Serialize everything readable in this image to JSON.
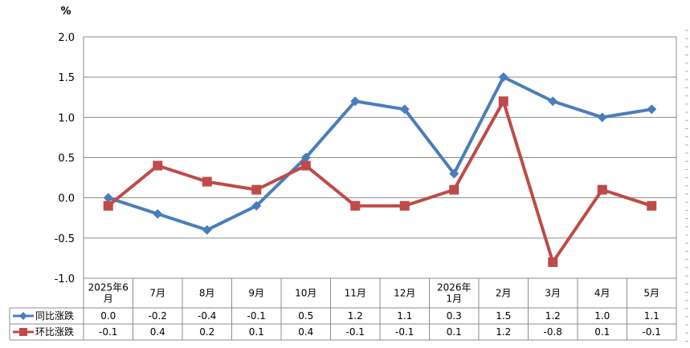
{
  "chart_data": {
    "type": "line",
    "unit": "%",
    "ylim": [
      -1.0,
      2.0
    ],
    "yticks": [
      "2.0",
      "1.5",
      "1.0",
      "0.5",
      "0.0",
      "-0.5",
      "-1.0"
    ],
    "grid": true,
    "categories": [
      [
        "2025年6",
        "月"
      ],
      [
        "7月"
      ],
      [
        "8月"
      ],
      [
        "9月"
      ],
      [
        "10月"
      ],
      [
        "11月"
      ],
      [
        "12月"
      ],
      [
        "2026年",
        "1月"
      ],
      [
        "2月"
      ],
      [
        "3月"
      ],
      [
        "4月"
      ],
      [
        "5月"
      ]
    ],
    "series": [
      {
        "name": "同比涨跌",
        "color": "#4a7ebb",
        "marker": "diamond",
        "values": [
          0.0,
          -0.2,
          -0.4,
          -0.1,
          0.5,
          1.2,
          1.1,
          0.3,
          1.5,
          1.2,
          1.0,
          1.1
        ],
        "labels": [
          "0.0",
          "-0.2",
          "-0.4",
          "-0.1",
          "0.5",
          "1.2",
          "1.1",
          "0.3",
          "1.5",
          "1.2",
          "1.0",
          "1.1"
        ]
      },
      {
        "name": "环比涨跌",
        "color": "#be4b48",
        "marker": "square",
        "values": [
          -0.1,
          0.4,
          0.2,
          0.1,
          0.4,
          -0.1,
          -0.1,
          0.1,
          1.2,
          -0.8,
          0.1,
          -0.1
        ],
        "labels": [
          "-0.1",
          "0.4",
          "0.2",
          "0.1",
          "0.4",
          "-0.1",
          "-0.1",
          "0.1",
          "1.2",
          "-0.8",
          "0.1",
          "-0.1"
        ]
      }
    ]
  }
}
